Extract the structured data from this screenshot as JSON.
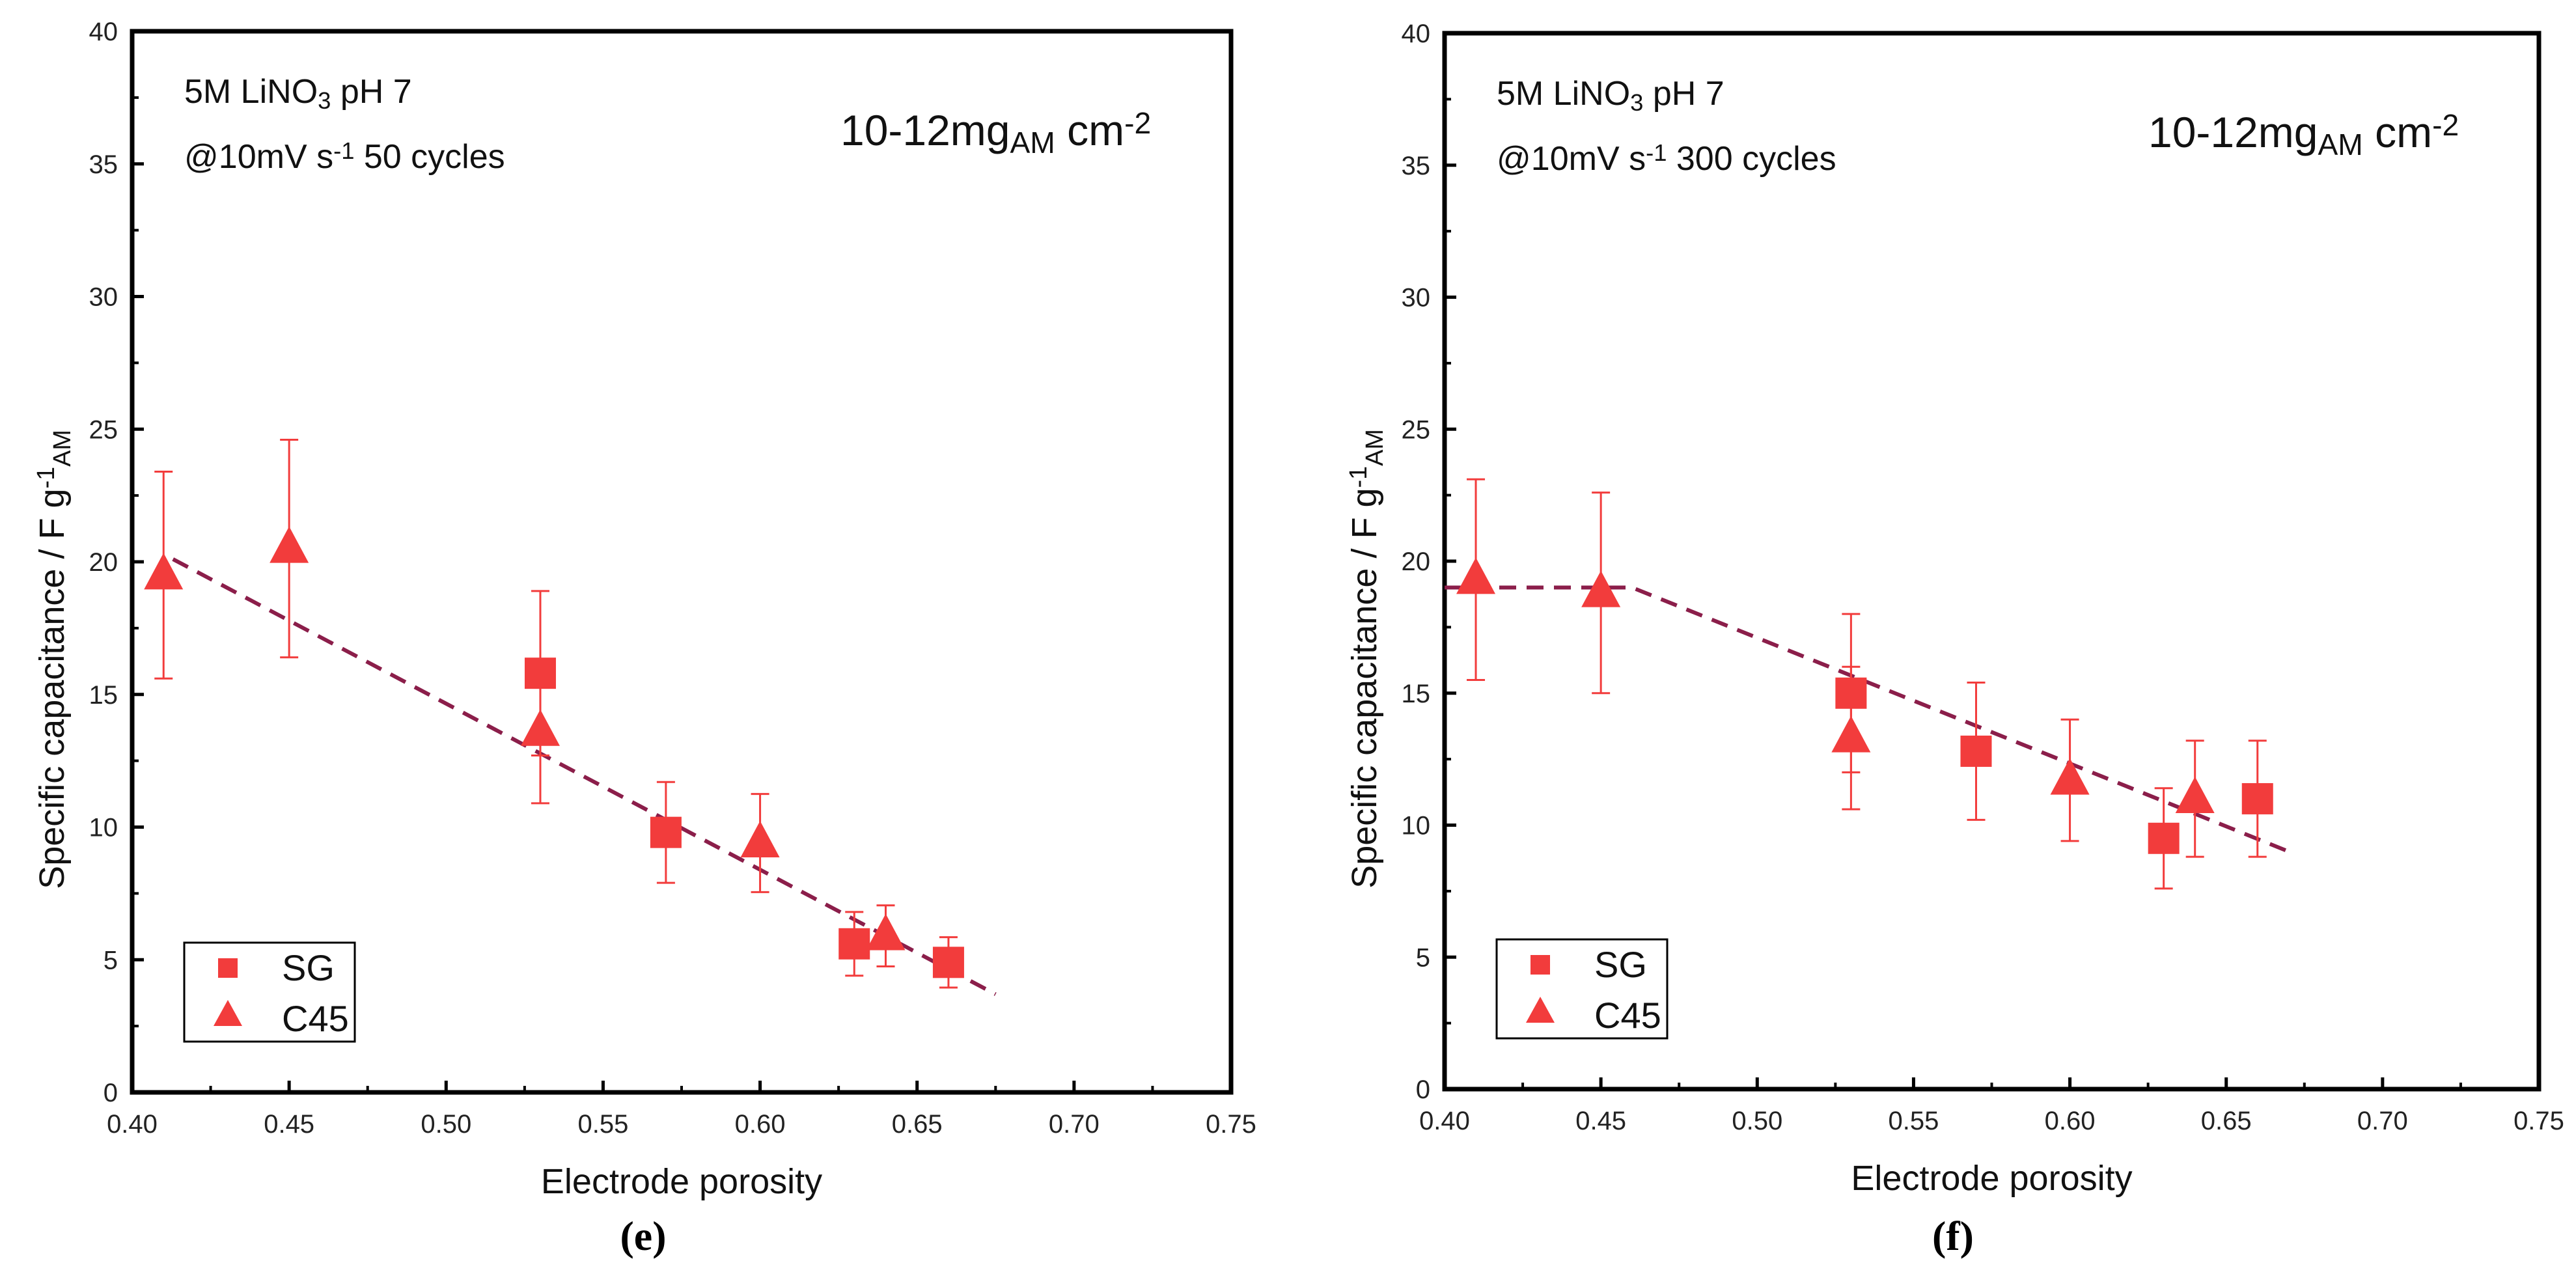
{
  "colors": {
    "marker": "#f23c3c",
    "fit": "#8b1e4a",
    "axis": "#000000"
  },
  "chart_data": [
    {
      "type": "scatter",
      "panel_label": "(e)",
      "xlabel": "Electrode porosity",
      "ylabel_parts": [
        {
          "t": "Specific capacitance / F g"
        },
        {
          "t": "-1",
          "sup": true
        },
        {
          "t": "AM",
          "sub": true
        }
      ],
      "xlim": [
        0.4,
        0.75
      ],
      "ylim": [
        0,
        40
      ],
      "xticks": [
        "0.40",
        "0.45",
        "0.50",
        "0.55",
        "0.60",
        "0.65",
        "0.70",
        "0.75"
      ],
      "yticks": [
        "0",
        "5",
        "10",
        "15",
        "20",
        "25",
        "30",
        "35",
        "40"
      ],
      "annotations": [
        [
          {
            "t": "5M LiNO"
          },
          {
            "t": "3",
            "sub": true
          },
          {
            "t": "   pH 7"
          }
        ],
        [
          {
            "t": "@10mV s"
          },
          {
            "t": "-1",
            "sup": true
          },
          {
            "t": "   50 cycles"
          }
        ]
      ],
      "loading_note": [
        {
          "t": "10-12mg"
        },
        {
          "t": "AM",
          "sub": true
        },
        {
          "t": " cm"
        },
        {
          "t": "-2",
          "sup": true
        }
      ],
      "legend": {
        "position": "bottom-left",
        "entries": [
          "SG",
          "C45"
        ]
      },
      "series": [
        {
          "name": "SG",
          "marker": "square",
          "x": [
            0.53,
            0.57,
            0.63,
            0.66
          ],
          "y": [
            15.8,
            9.8,
            5.6,
            4.9
          ],
          "err": [
            3.1,
            1.9,
            1.2,
            0.95
          ]
        },
        {
          "name": "C45",
          "marker": "triangle",
          "x": [
            0.41,
            0.45,
            0.53,
            0.6,
            0.64
          ],
          "y": [
            19.5,
            20.5,
            13.6,
            9.4,
            5.9
          ],
          "err": [
            3.9,
            4.1,
            2.7,
            1.85,
            1.15
          ]
        }
      ],
      "fit": {
        "style": "dashed",
        "x": [
          0.413,
          0.675
        ],
        "y": [
          20.1,
          3.7
        ]
      }
    },
    {
      "type": "scatter",
      "panel_label": "(f)",
      "xlabel": "Electrode porosity",
      "ylabel_parts": [
        {
          "t": "Specific capacitance / F g"
        },
        {
          "t": "-1",
          "sup": true
        },
        {
          "t": "AM",
          "sub": true
        }
      ],
      "xlim": [
        0.4,
        0.75
      ],
      "ylim": [
        0,
        40
      ],
      "xticks": [
        "0.40",
        "0.45",
        "0.50",
        "0.55",
        "0.60",
        "0.65",
        "0.70",
        "0.75"
      ],
      "yticks": [
        "0",
        "5",
        "10",
        "15",
        "20",
        "25",
        "30",
        "35",
        "40"
      ],
      "annotations": [
        [
          {
            "t": "5M LiNO"
          },
          {
            "t": "3",
            "sub": true
          },
          {
            "t": "   pH 7"
          }
        ],
        [
          {
            "t": "@10mV s"
          },
          {
            "t": "-1",
            "sup": true
          },
          {
            "t": "   300 cycles"
          }
        ]
      ],
      "loading_note": [
        {
          "t": "10-12mg"
        },
        {
          "t": "AM",
          "sub": true
        },
        {
          "t": " cm"
        },
        {
          "t": "-2",
          "sup": true
        }
      ],
      "legend": {
        "position": "bottom-left",
        "entries": [
          "SG",
          "C45"
        ]
      },
      "series": [
        {
          "name": "SG",
          "marker": "square",
          "x": [
            0.53,
            0.57,
            0.63,
            0.66
          ],
          "y": [
            15.0,
            12.8,
            9.5,
            11.0
          ],
          "err": [
            3.0,
            2.6,
            1.9,
            2.2
          ]
        },
        {
          "name": "C45",
          "marker": "triangle",
          "x": [
            0.41,
            0.45,
            0.53,
            0.6,
            0.64
          ],
          "y": [
            19.3,
            18.8,
            13.3,
            11.7,
            11.0
          ],
          "err": [
            3.8,
            3.8,
            2.7,
            2.3,
            2.2
          ]
        }
      ],
      "fit": {
        "style": "dashed",
        "x": [
          0.4,
          0.46,
          0.67
        ],
        "y": [
          19.0,
          19.0,
          9.0
        ]
      }
    }
  ]
}
